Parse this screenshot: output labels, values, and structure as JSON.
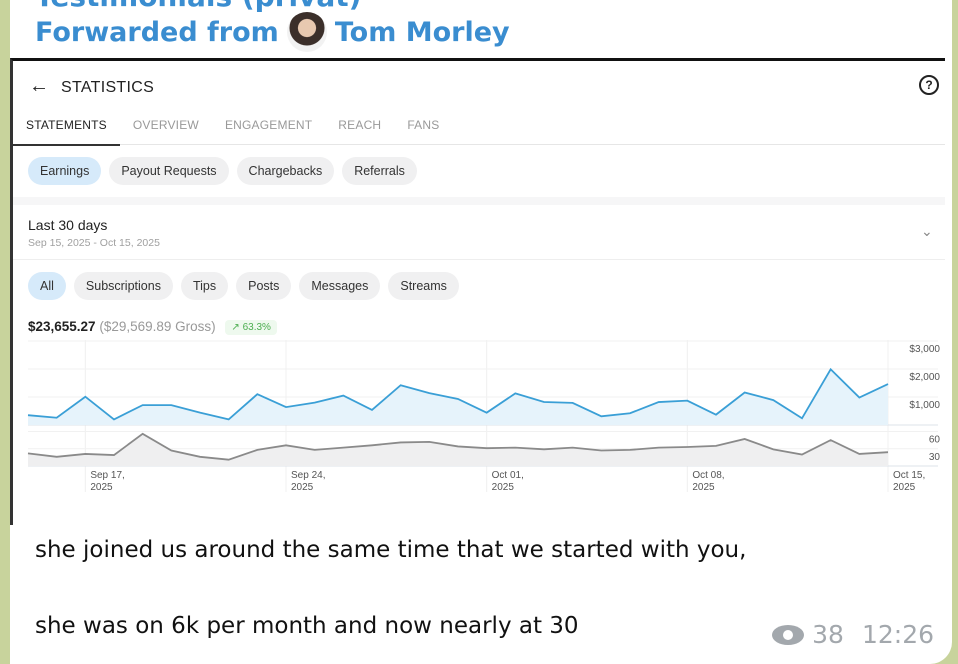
{
  "message": {
    "channel_title": "Testimonials (privat)",
    "forwarded_prefix": "Forwarded from",
    "forwarded_author": "Tom Morley",
    "text_line_1": "she joined us around the same time that we started with you,",
    "text_line_2": "she was on 6k per month and now nearly at 30",
    "views": "38",
    "time": "12:26",
    "colors": {
      "link": "#3a8dd0",
      "background": "#c8d39c"
    }
  },
  "screenshot": {
    "title": "STATISTICS",
    "back_icon": "arrow-left",
    "help_icon": "question-circle",
    "tabs": [
      {
        "label": "STATEMENTS",
        "active": true
      },
      {
        "label": "OVERVIEW"
      },
      {
        "label": "ENGAGEMENT"
      },
      {
        "label": "REACH"
      },
      {
        "label": "FANS"
      }
    ],
    "statement_pills": [
      {
        "label": "Earnings",
        "selected": true
      },
      {
        "label": "Payout Requests"
      },
      {
        "label": "Chargebacks"
      },
      {
        "label": "Referrals"
      }
    ],
    "range_label": "Last 30 days",
    "range_dates": "Sep 15, 2025 - Oct 15, 2025",
    "type_pills": [
      {
        "label": "All",
        "selected": true
      },
      {
        "label": "Subscriptions"
      },
      {
        "label": "Tips"
      },
      {
        "label": "Posts"
      },
      {
        "label": "Messages"
      },
      {
        "label": "Streams"
      }
    ],
    "net_total": "$23,655.27",
    "gross_total": "($29,569.89 Gross)",
    "change": "63.3%",
    "change_icon": "arrow-up-right"
  },
  "chart_data": [
    {
      "type": "area",
      "x_start": "2025-09-15",
      "x_end": "2025-10-15",
      "x_ticks": [
        [
          "Sep 17,",
          "2025"
        ],
        [
          "Sep 24,",
          "2025"
        ],
        [
          "Oct 01,",
          "2025"
        ],
        [
          "Oct 08,",
          "2025"
        ],
        [
          "Oct 15,",
          "2025"
        ]
      ],
      "y_ticks": [
        "$1,000",
        "$2,000",
        "$3,000"
      ],
      "ylim": [
        0,
        3000
      ],
      "color": "#3a9fd6",
      "values": [
        350,
        260,
        1010,
        200,
        710,
        710,
        440,
        200,
        1100,
        640,
        800,
        1050,
        540,
        1420,
        1140,
        930,
        440,
        1130,
        820,
        790,
        310,
        420,
        820,
        870,
        370,
        1160,
        890,
        240,
        1990,
        980,
        1460
      ]
    },
    {
      "type": "area",
      "y_ticks": [
        "30",
        "60"
      ],
      "ylim": [
        0,
        80
      ],
      "color": "#8a8a8a",
      "values": [
        22,
        16,
        21,
        19,
        56,
        27,
        16,
        11,
        28,
        36,
        28,
        32,
        36,
        41,
        42,
        34,
        31,
        32,
        29,
        32,
        27,
        28,
        32,
        33,
        35,
        47,
        29,
        20,
        45,
        21,
        24
      ]
    }
  ]
}
